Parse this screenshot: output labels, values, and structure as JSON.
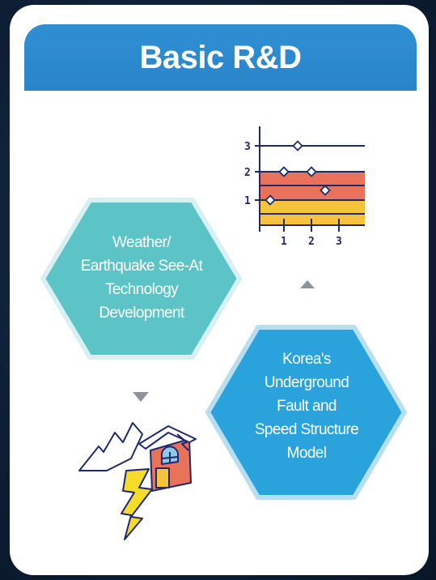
{
  "title": "Basic R&D",
  "hex_weather": {
    "lines": [
      "Weather/",
      "Earthquake See-At",
      "Technology",
      "Development"
    ]
  },
  "hex_fault": {
    "lines": [
      "Korea's",
      "Underground",
      "Fault and",
      "Speed Structure",
      "Model"
    ]
  },
  "chart_icon": {
    "y_ticks": [
      "1",
      "2",
      "3"
    ],
    "x_ticks": [
      "1",
      "2",
      "3"
    ],
    "points": [
      [
        0.5,
        1
      ],
      [
        1,
        2
      ],
      [
        1.5,
        3
      ],
      [
        2,
        2
      ],
      [
        2.5,
        1.5
      ]
    ]
  },
  "colors": {
    "background": "#0f1f36",
    "banner": "#2f8fd3",
    "hex_teal": "#5cc4c7",
    "hex_blue": "#2aa3dc",
    "chart_band_red": "#e8735a",
    "chart_band_yellow": "#f5c43c",
    "arrow_gray": "#8d9398"
  },
  "icons": [
    "line-chart-icon",
    "earthquake-house-icon",
    "arrow-down-icon",
    "arrow-up-icon"
  ]
}
